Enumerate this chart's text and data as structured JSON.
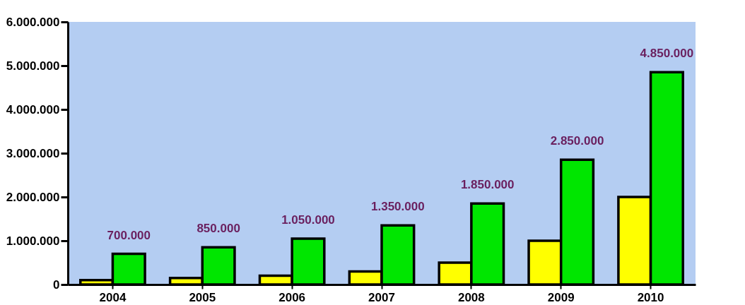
{
  "chart_data": {
    "type": "bar",
    "categories": [
      "2004",
      "2005",
      "2006",
      "2007",
      "2008",
      "2009",
      "2010"
    ],
    "series": [
      {
        "color": "#ffff00",
        "values": [
          100000,
          150000,
          200000,
          300000,
          500000,
          1000000,
          2000000
        ]
      },
      {
        "color": "#00e600",
        "values": [
          700000,
          850000,
          1050000,
          1350000,
          1850000,
          2850000,
          4850000
        ],
        "value_labels": [
          "700.000",
          "850.000",
          "1.050.000",
          "1.350.000",
          "1.850.000",
          "2.850.000",
          "4.850.000"
        ]
      }
    ],
    "ylim": [
      0,
      6000000
    ],
    "yticks": [
      {
        "value": 0,
        "label": "0"
      },
      {
        "value": 1000000,
        "label": "1.000.000"
      },
      {
        "value": 2000000,
        "label": "2.000.000"
      },
      {
        "value": 3000000,
        "label": "3.000.000"
      },
      {
        "value": 4000000,
        "label": "4.000.000"
      },
      {
        "value": 5000000,
        "label": "5.000.000"
      },
      {
        "value": 6000000,
        "label": "6.000.000"
      }
    ],
    "grid": false,
    "legend": false
  }
}
